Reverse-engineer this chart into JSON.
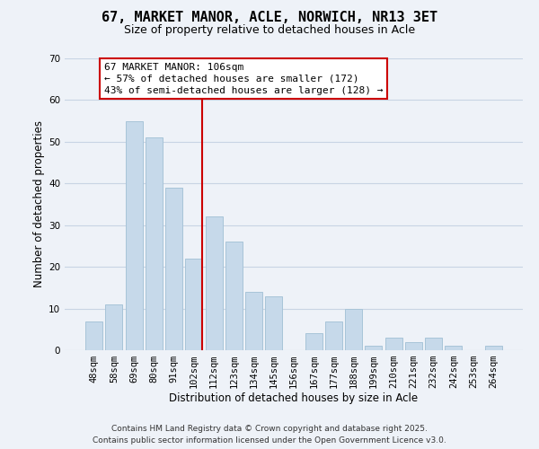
{
  "title": "67, MARKET MANOR, ACLE, NORWICH, NR13 3ET",
  "subtitle": "Size of property relative to detached houses in Acle",
  "xlabel": "Distribution of detached houses by size in Acle",
  "ylabel": "Number of detached properties",
  "bar_labels": [
    "48sqm",
    "58sqm",
    "69sqm",
    "80sqm",
    "91sqm",
    "102sqm",
    "112sqm",
    "123sqm",
    "134sqm",
    "145sqm",
    "156sqm",
    "167sqm",
    "177sqm",
    "188sqm",
    "199sqm",
    "210sqm",
    "221sqm",
    "232sqm",
    "242sqm",
    "253sqm",
    "264sqm"
  ],
  "bar_values": [
    7,
    11,
    55,
    51,
    39,
    22,
    32,
    26,
    14,
    13,
    0,
    4,
    7,
    10,
    1,
    3,
    2,
    3,
    1,
    0,
    1
  ],
  "bar_color": "#c6d9ea",
  "bar_edge_color": "#a8c4d8",
  "ref_line_color": "#cc0000",
  "annotation_title": "67 MARKET MANOR: 106sqm",
  "annotation_line1": "← 57% of detached houses are smaller (172)",
  "annotation_line2": "43% of semi-detached houses are larger (128) →",
  "annotation_box_edge": "#cc0000",
  "annotation_box_bg": "#ffffff",
  "ylim": [
    0,
    70
  ],
  "yticks": [
    0,
    10,
    20,
    30,
    40,
    50,
    60,
    70
  ],
  "grid_color": "#c8d4e4",
  "bg_color": "#eef2f8",
  "footer_line1": "Contains HM Land Registry data © Crown copyright and database right 2025.",
  "footer_line2": "Contains public sector information licensed under the Open Government Licence v3.0.",
  "title_fontsize": 11,
  "subtitle_fontsize": 9,
  "axis_label_fontsize": 8.5,
  "tick_fontsize": 7.5,
  "annotation_fontsize": 8,
  "footer_fontsize": 6.5
}
